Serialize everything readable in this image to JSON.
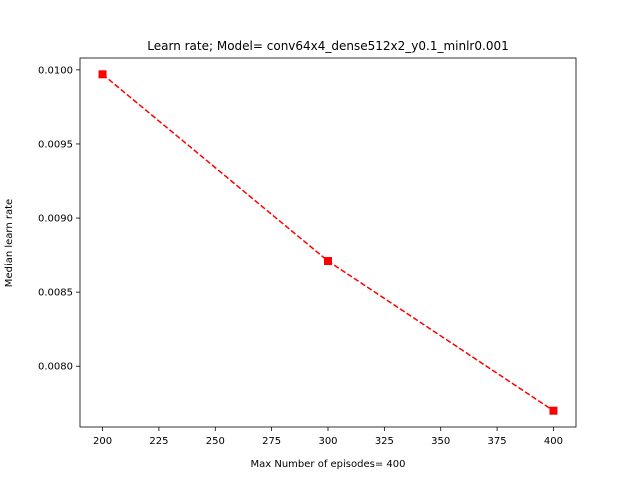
{
  "chart_data": {
    "type": "line",
    "title": "Learn rate; Model= conv64x4_dense512x2_y0.1_minlr0.001",
    "xlabel": "Max Number of episodes= 400",
    "ylabel": "Median learn rate",
    "x": [
      200,
      300,
      400
    ],
    "series": [
      {
        "values": [
          0.00997,
          0.00871,
          0.0077
        ],
        "color": "#ff0000",
        "line_style": "dashed",
        "marker": "square"
      }
    ],
    "xlim": [
      190,
      410
    ],
    "ylim": [
      0.00759,
      0.01008
    ],
    "x_ticks": [
      {
        "value": 200,
        "label": "200"
      },
      {
        "value": 225,
        "label": "225"
      },
      {
        "value": 250,
        "label": "250"
      },
      {
        "value": 275,
        "label": "275"
      },
      {
        "value": 300,
        "label": "300"
      },
      {
        "value": 325,
        "label": "325"
      },
      {
        "value": 350,
        "label": "350"
      },
      {
        "value": 375,
        "label": "375"
      },
      {
        "value": 400,
        "label": "400"
      }
    ],
    "y_ticks": [
      {
        "value": 0.008,
        "label": "0.0080"
      },
      {
        "value": 0.0085,
        "label": "0.0085"
      },
      {
        "value": 0.009,
        "label": "0.0090"
      },
      {
        "value": 0.0095,
        "label": "0.0095"
      },
      {
        "value": 0.01,
        "label": "0.0100"
      }
    ],
    "grid": false,
    "legend": "none"
  }
}
